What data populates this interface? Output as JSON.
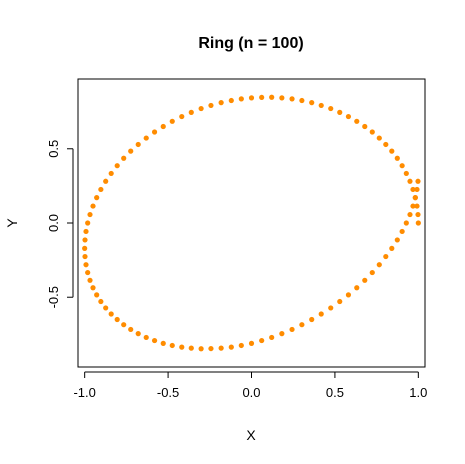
{
  "chart_data": {
    "type": "scatter",
    "title": "Ring (n = 100)",
    "xlabel": "X",
    "ylabel": "Y",
    "xlim": [
      -1.04,
      1.04
    ],
    "ylim": [
      -0.97,
      0.97
    ],
    "x_ticks": [
      -1.0,
      -0.5,
      0.0,
      0.5,
      1.0
    ],
    "x_tick_labels": [
      "-1.0",
      "-0.5",
      "0.0",
      "0.5",
      "1.0"
    ],
    "y_ticks": [
      -0.5,
      0.0,
      0.5
    ],
    "y_tick_labels": [
      "-0.5",
      "0.0",
      "0.5"
    ],
    "grid": false,
    "point_color": "#FF8C00",
    "series": [
      {
        "n": 100,
        "points": [
          [
            1.0,
            0.0
          ],
          [
            0.998,
            0.057
          ],
          [
            0.992,
            0.114
          ],
          [
            0.982,
            0.171
          ],
          [
            0.968,
            0.226
          ],
          [
            0.95,
            0.281
          ],
          [
            0.928,
            0.334
          ],
          [
            0.903,
            0.386
          ],
          [
            0.874,
            0.436
          ],
          [
            0.841,
            0.484
          ],
          [
            0.805,
            0.529
          ],
          [
            0.766,
            0.572
          ],
          [
            0.724,
            0.613
          ],
          [
            0.679,
            0.65
          ],
          [
            0.631,
            0.685
          ],
          [
            0.581,
            0.717
          ],
          [
            0.529,
            0.745
          ],
          [
            0.475,
            0.771
          ],
          [
            0.418,
            0.792
          ],
          [
            0.361,
            0.811
          ],
          [
            0.302,
            0.825
          ],
          [
            0.243,
            0.836
          ],
          [
            0.182,
            0.843
          ],
          [
            0.121,
            0.847
          ],
          [
            0.061,
            0.846
          ],
          [
            0.0,
            0.843
          ],
          [
            -0.061,
            0.836
          ],
          [
            -0.121,
            0.825
          ],
          [
            -0.182,
            0.811
          ],
          [
            -0.243,
            0.792
          ],
          [
            -0.302,
            0.771
          ],
          [
            -0.361,
            0.745
          ],
          [
            -0.418,
            0.717
          ],
          [
            -0.475,
            0.685
          ],
          [
            -0.529,
            0.65
          ],
          [
            -0.581,
            0.613
          ],
          [
            -0.631,
            0.572
          ],
          [
            -0.679,
            0.529
          ],
          [
            -0.724,
            0.484
          ],
          [
            -0.766,
            0.436
          ],
          [
            -0.805,
            0.386
          ],
          [
            -0.841,
            0.334
          ],
          [
            -0.874,
            0.281
          ],
          [
            -0.903,
            0.226
          ],
          [
            -0.928,
            0.171
          ],
          [
            -0.95,
            0.114
          ],
          [
            -0.968,
            0.057
          ],
          [
            -0.982,
            0.0
          ],
          [
            -0.992,
            -0.057
          ],
          [
            -0.998,
            -0.114
          ],
          [
            -1.0,
            -0.171
          ],
          [
            -0.998,
            -0.226
          ],
          [
            -0.992,
            -0.281
          ],
          [
            -0.982,
            -0.334
          ],
          [
            -0.968,
            -0.386
          ],
          [
            -0.95,
            -0.436
          ],
          [
            -0.928,
            -0.484
          ],
          [
            -0.903,
            -0.529
          ],
          [
            -0.874,
            -0.572
          ],
          [
            -0.841,
            -0.613
          ],
          [
            -0.805,
            -0.65
          ],
          [
            -0.766,
            -0.685
          ],
          [
            -0.724,
            -0.717
          ],
          [
            -0.679,
            -0.745
          ],
          [
            -0.631,
            -0.771
          ],
          [
            -0.581,
            -0.792
          ],
          [
            -0.529,
            -0.811
          ],
          [
            -0.475,
            -0.825
          ],
          [
            -0.418,
            -0.836
          ],
          [
            -0.361,
            -0.843
          ],
          [
            -0.302,
            -0.847
          ],
          [
            -0.243,
            -0.846
          ],
          [
            -0.182,
            -0.843
          ],
          [
            -0.121,
            -0.836
          ],
          [
            -0.061,
            -0.825
          ],
          [
            0.0,
            -0.811
          ],
          [
            0.061,
            -0.792
          ],
          [
            0.121,
            -0.771
          ],
          [
            0.182,
            -0.745
          ],
          [
            0.243,
            -0.717
          ],
          [
            0.302,
            -0.685
          ],
          [
            0.361,
            -0.65
          ],
          [
            0.418,
            -0.613
          ],
          [
            0.475,
            -0.572
          ],
          [
            0.529,
            -0.529
          ],
          [
            0.581,
            -0.484
          ],
          [
            0.631,
            -0.436
          ],
          [
            0.679,
            -0.386
          ],
          [
            0.724,
            -0.334
          ],
          [
            0.766,
            -0.281
          ],
          [
            0.805,
            -0.226
          ],
          [
            0.841,
            -0.171
          ],
          [
            0.874,
            -0.114
          ],
          [
            0.903,
            -0.057
          ],
          [
            0.928,
            0.0
          ],
          [
            0.95,
            0.057
          ],
          [
            0.968,
            0.114
          ],
          [
            0.982,
            0.171
          ],
          [
            0.992,
            0.226
          ],
          [
            0.998,
            0.281
          ]
        ]
      }
    ]
  }
}
